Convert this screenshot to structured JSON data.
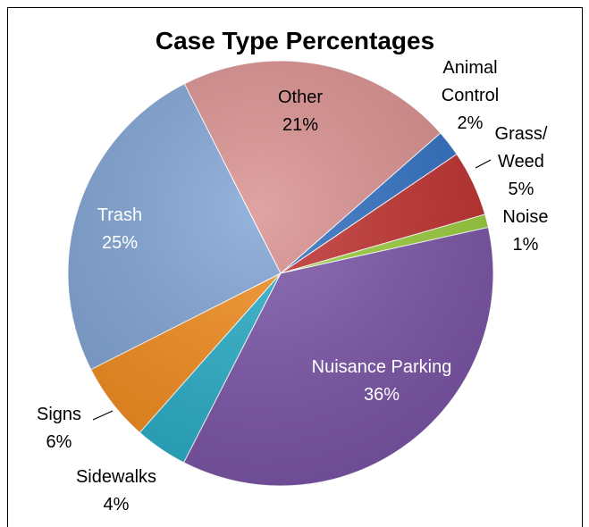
{
  "chart_data": {
    "type": "pie",
    "title": "Case Type Percentages",
    "categories": [
      "Animal Control",
      "Grass/ Weed",
      "Noise",
      "Nuisance Parking",
      "Sidewalks",
      "Signs",
      "Trash",
      "Other"
    ],
    "values": [
      2,
      5,
      1,
      36,
      4,
      6,
      25,
      21
    ],
    "value_labels": [
      "2%",
      "5%",
      "1%",
      "36%",
      "4%",
      "6%",
      "25%",
      "21%"
    ],
    "colors": [
      "#2f6fc2",
      "#c0302e",
      "#9acd3c",
      "#7b55a8",
      "#2aaec8",
      "#f38c1e",
      "#7fa3d4",
      "#d98f8e"
    ]
  }
}
